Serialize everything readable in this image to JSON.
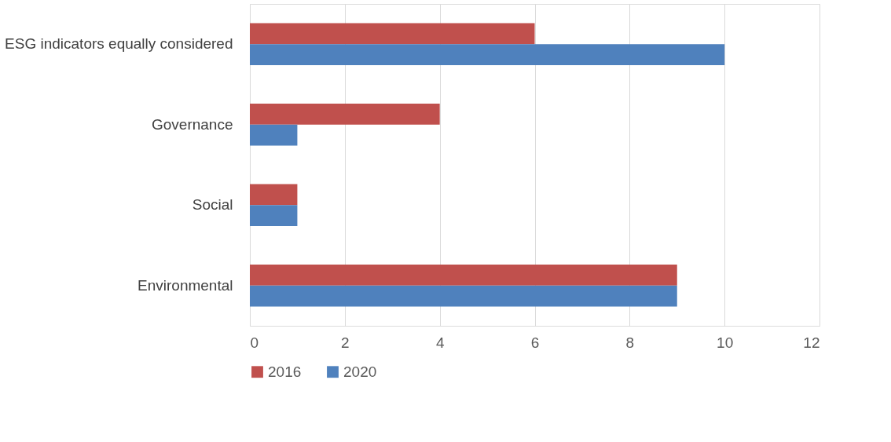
{
  "chart_data": {
    "type": "bar",
    "orientation": "horizontal",
    "categories": [
      "ESG indicators equally considered",
      "Governance",
      "Social",
      "Environmental"
    ],
    "series": [
      {
        "name": "2016",
        "color": "#c0504d",
        "values": [
          6,
          4,
          1,
          9
        ]
      },
      {
        "name": "2020",
        "color": "#4f81bd",
        "values": [
          10,
          1,
          1,
          9
        ]
      }
    ],
    "xlim": [
      0,
      12
    ],
    "xticks": [
      0,
      2,
      4,
      6,
      8,
      10,
      12
    ],
    "grid": "x",
    "legend": "bottom"
  }
}
